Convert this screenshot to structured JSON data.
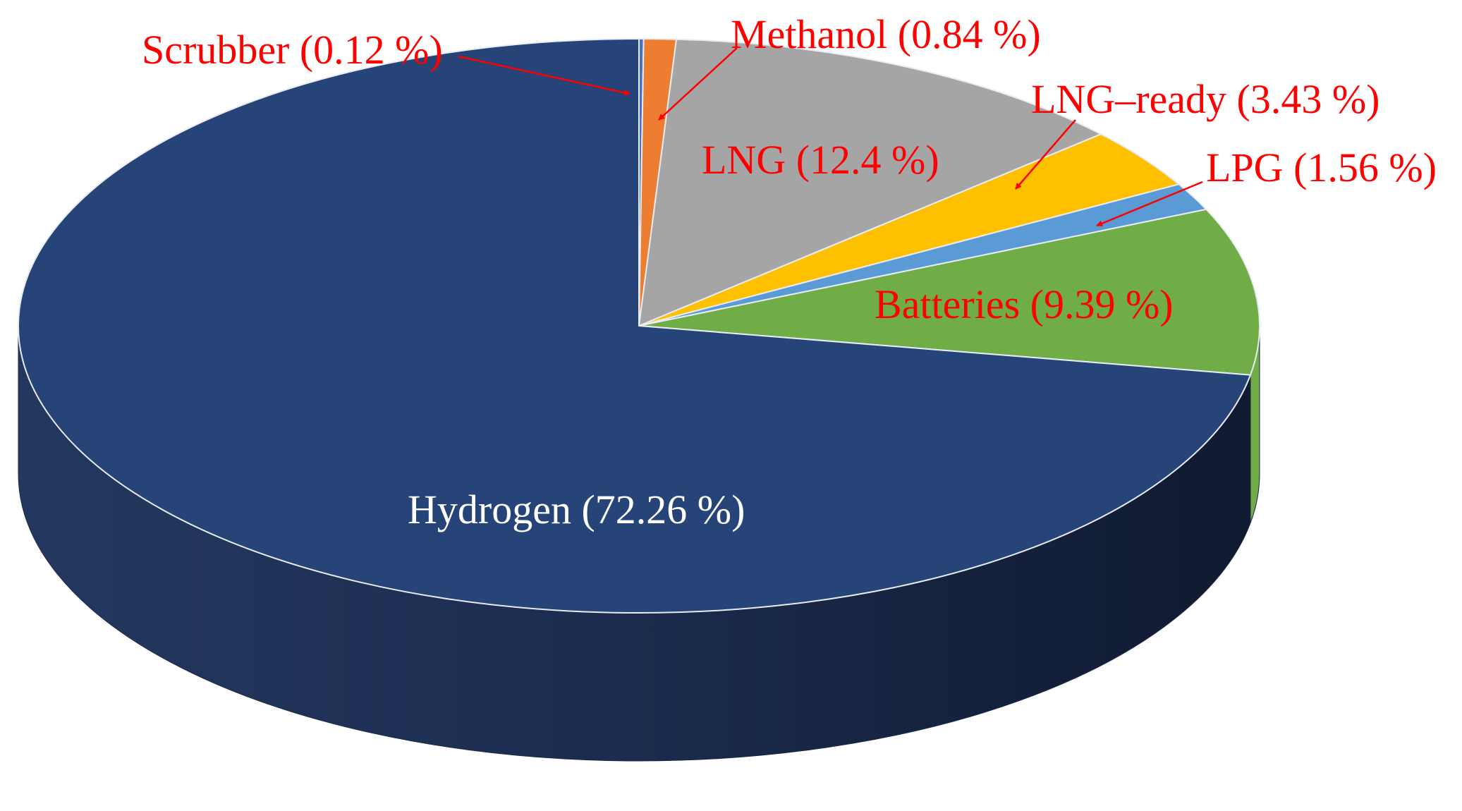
{
  "chart_data": {
    "type": "pie",
    "title": "",
    "unit": "%",
    "slices": [
      {
        "name": "Scrubber",
        "value": 0.12,
        "label": "Scrubber (0.12 %)",
        "color": "#4472C4"
      },
      {
        "name": "Methanol",
        "value": 0.84,
        "label": "Methanol (0.84 %)",
        "color": "#ED7D31"
      },
      {
        "name": "LNG",
        "value": 12.4,
        "label": "LNG (12.4 %)",
        "color": "#A5A5A5"
      },
      {
        "name": "LNG–ready",
        "value": 3.43,
        "label": "LNG–ready (3.43 %)",
        "color": "#FFC000"
      },
      {
        "name": "LPG",
        "value": 1.56,
        "label": "LPG (1.56 %)",
        "color": "#5B9BD5"
      },
      {
        "name": "Batteries",
        "value": 9.39,
        "label": "Batteries (9.39 %)",
        "color": "#70AD47"
      },
      {
        "name": "Hydrogen",
        "value": 72.26,
        "label": "Hydrogen (72.26 %)",
        "color": "#264478"
      }
    ],
    "label_color": "#FF0000",
    "inner_label_color": "#FFFFFF",
    "style": "3d",
    "legend": "none"
  }
}
